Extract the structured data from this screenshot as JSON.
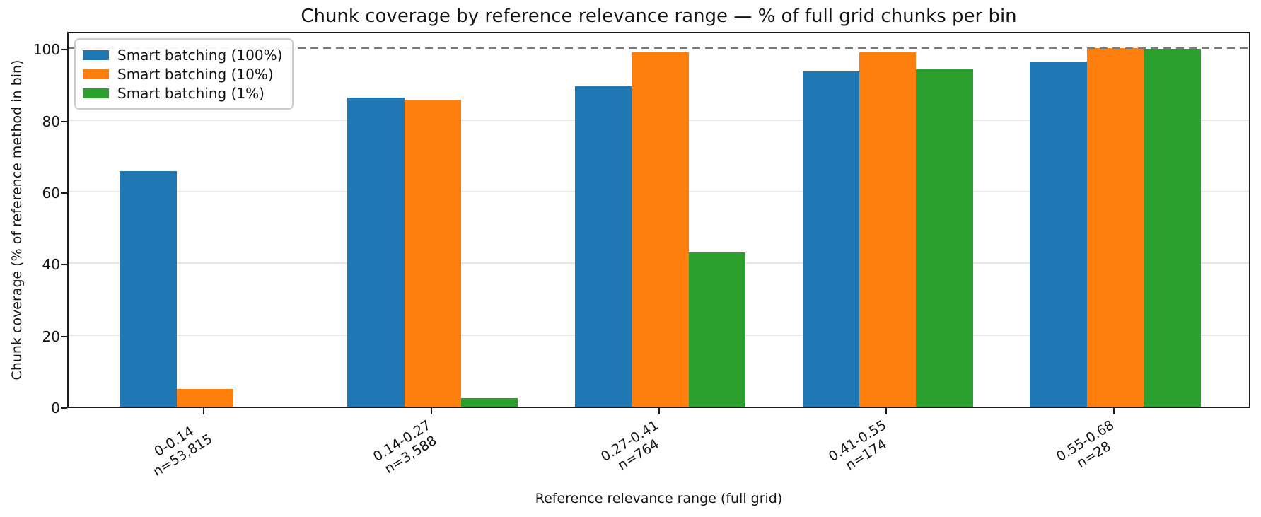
{
  "chart_data": {
    "type": "bar",
    "title": "Chunk coverage by reference relevance range — % of full grid chunks per bin",
    "xlabel": "Reference relevance range (full grid)",
    "ylabel": "Chunk coverage (% of reference method in bin)",
    "categories": [
      "0-0.14",
      "0.14-0.27",
      "0.27-0.41",
      "0.41-0.55",
      "0.55-0.68"
    ],
    "bin_counts": [
      "n=53,815",
      "n=3,588",
      "n=764",
      "n=174",
      "n=28"
    ],
    "series": [
      {
        "name": "Smart batching (100%)",
        "color": "#1f77b4",
        "values": [
          65.7,
          86.3,
          89.5,
          93.5,
          96.3
        ]
      },
      {
        "name": "Smart batching (10%)",
        "color": "#ff7f0e",
        "values": [
          5.0,
          85.6,
          98.9,
          98.8,
          100.0
        ]
      },
      {
        "name": "Smart batching (1%)",
        "color": "#2ca02c",
        "values": [
          0.0,
          2.3,
          43.1,
          94.2,
          99.8
        ]
      }
    ],
    "yticks": [
      0,
      20,
      40,
      60,
      80,
      100
    ],
    "ylim": [
      0,
      105
    ],
    "xlim": [
      -0.6,
      4.6
    ],
    "bar_width": 0.25,
    "reference_line": {
      "y": 100,
      "style": "dashed",
      "color": "#7a7a7a"
    },
    "legend_position": "upper left",
    "grid": "horizontal"
  }
}
